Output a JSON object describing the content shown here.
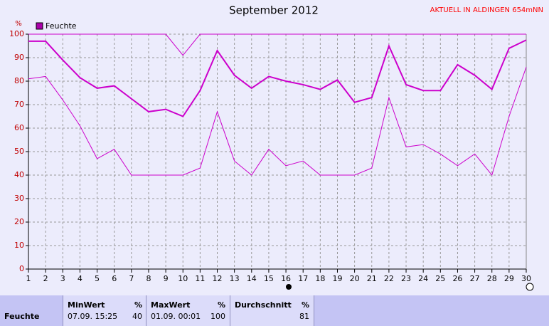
{
  "chart_data": {
    "type": "line",
    "title": "September 2012",
    "annotation": "AKTUELL IN ALDINGEN 654mNN",
    "ylabel": "%",
    "categories": [
      "1",
      "2",
      "3",
      "4",
      "5",
      "6",
      "7",
      "8",
      "9",
      "10",
      "11",
      "12",
      "13",
      "14",
      "15",
      "16",
      "17",
      "18",
      "19",
      "20",
      "21",
      "22",
      "23",
      "24",
      "25",
      "26",
      "27",
      "28",
      "29",
      "30"
    ],
    "series": [
      {
        "name": "Feuchte",
        "color": "#cc00cc",
        "values": [
          97,
          97,
          89,
          81.5,
          77,
          78,
          72.5,
          67,
          68,
          65,
          76,
          93,
          82.5,
          77,
          82,
          80,
          78.5,
          76.5,
          80.5,
          71,
          73,
          95,
          78.5,
          76,
          76,
          87,
          82.5,
          76.5,
          94,
          97.5
        ]
      },
      {
        "color": "#cc00cc",
        "values": [
          81,
          82,
          72,
          61,
          47,
          51,
          40,
          40,
          40,
          40,
          43,
          67,
          46,
          40,
          51,
          44,
          46,
          40,
          40,
          40,
          43,
          73,
          52,
          53,
          49,
          44,
          49,
          40,
          65,
          86
        ]
      },
      {
        "color": "#cc00cc",
        "values": [
          100,
          100,
          100,
          100,
          100,
          100,
          100,
          100,
          100,
          91,
          100,
          100,
          100,
          100,
          100,
          100,
          100,
          100,
          100,
          100,
          100,
          100,
          100,
          100,
          100,
          100,
          100,
          100,
          100,
          100
        ]
      }
    ],
    "ylim": [
      0,
      100
    ],
    "yticks": [
      0,
      10,
      20,
      30,
      40,
      50,
      60,
      70,
      80,
      90,
      100
    ],
    "grid": true
  },
  "table": {
    "row_label": "Feuchte",
    "columns": [
      {
        "header": "MinWert",
        "unit": "%",
        "time": "07.09.  15:25",
        "value": "40"
      },
      {
        "header": "MaxWert",
        "unit": "%",
        "time": "01.09.  00:01",
        "value": "100"
      },
      {
        "header": "Durchschnitt",
        "unit": "%",
        "time": "",
        "value": "81"
      }
    ]
  }
}
